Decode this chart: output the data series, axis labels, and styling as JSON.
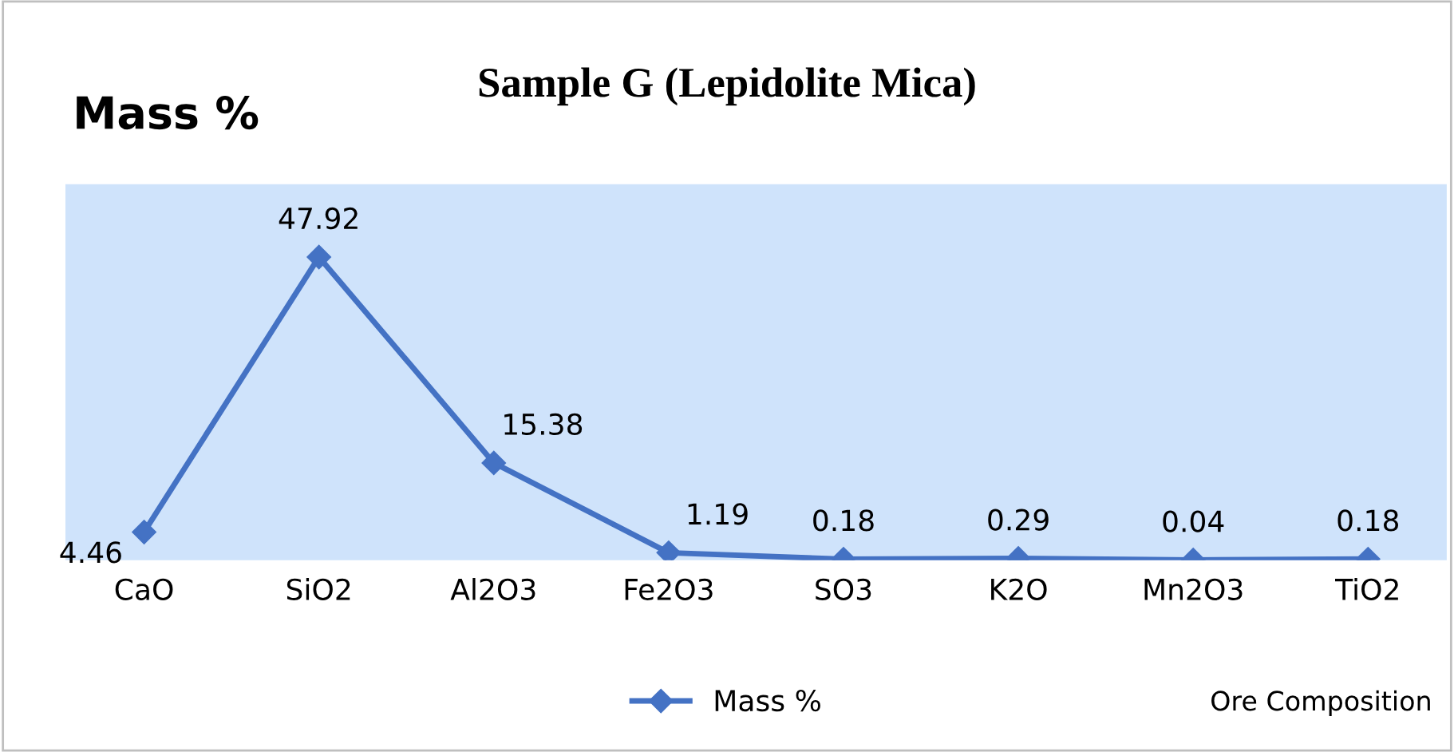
{
  "chart_data": {
    "type": "line",
    "title": "Sample G (Lepidolite Mica)",
    "ylabel": "Mass %",
    "categories": [
      "CaO",
      "SiO2",
      "Al2O3",
      "Fe2O3",
      "SO3",
      "K2O",
      "Mn2O3",
      "TiO2"
    ],
    "series": [
      {
        "name": "Mass %",
        "color": "#4472c4",
        "values": [
          4.46,
          47.92,
          15.38,
          1.19,
          0.18,
          0.29,
          0.04,
          0.18
        ]
      }
    ],
    "data_labels": true,
    "marker": "diamond",
    "line_style": "solid",
    "legend": "bottom",
    "grid": false,
    "tick_labels": "x",
    "annotations": [
      "Ore Composition"
    ]
  }
}
